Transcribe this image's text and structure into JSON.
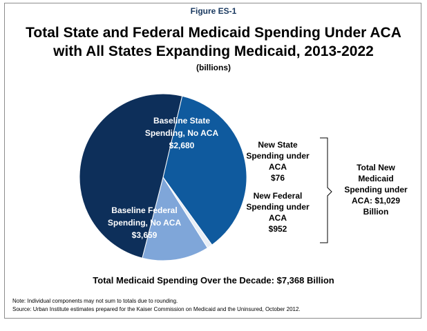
{
  "figure_label": "Figure ES-1",
  "title_line1": "Total State and Federal Medicaid Spending Under ACA",
  "title_line2": "with All States Expanding Medicaid, 2013-2022",
  "subtitle": "(billions)",
  "chart_data": {
    "type": "pie",
    "slices": [
      {
        "label": "Baseline State Spending, No ACA",
        "value": 2680,
        "value_label": "$2,680",
        "color": "#0f5a9e"
      },
      {
        "label": "New State Spending under ACA",
        "value": 76,
        "value_label": "$76",
        "color": "#e8eef6"
      },
      {
        "label": "New Federal Spending under ACA",
        "value": 952,
        "value_label": "$952",
        "color": "#7fa6d9"
      },
      {
        "label": "Baseline Federal Spending, No ACA",
        "value": 3659,
        "value_label": "$3,659",
        "color": "#0d2f5a"
      }
    ],
    "bracket_label": "Total New Medicaid Spending under ACA: $1,029 Billion"
  },
  "labels": {
    "baseline_state": [
      "Baseline State",
      "Spending, No ACA",
      "$2,680"
    ],
    "baseline_federal": [
      "Baseline Federal",
      "Spending, No ACA",
      "$3,659"
    ],
    "new_state": [
      "New State",
      "Spending under",
      "ACA",
      "$76"
    ],
    "new_federal": [
      "New Federal",
      "Spending under",
      "ACA",
      "$952"
    ],
    "bracket": [
      "Total New",
      "Medicaid",
      "Spending under",
      "ACA: $1,029",
      "Billion"
    ]
  },
  "total_text": "Total Medicaid Spending Over the Decade: $7,368 Billion",
  "note": "Note: Individual components may not sum to totals due to rounding.",
  "source": "Source: Urban Institute estimates prepared for the Kaiser Commission on Medicaid and the Uninsured, October 2012."
}
